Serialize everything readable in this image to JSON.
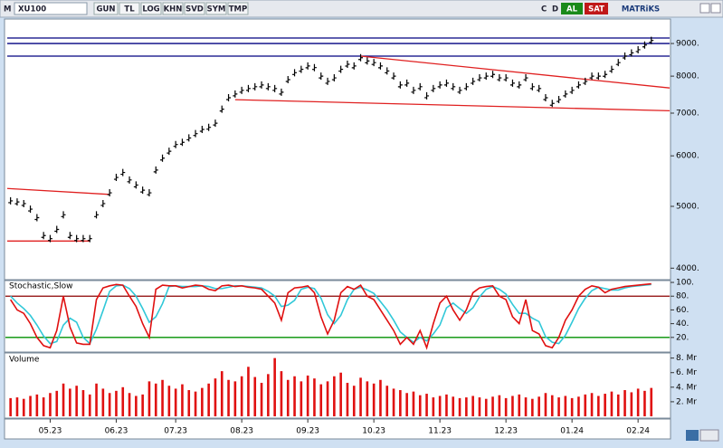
{
  "toolbar": {
    "menu": "M",
    "symbol": "XU100",
    "buttons": [
      "GUN",
      "TL",
      "LOG",
      "KHN",
      "SVD",
      "SYM",
      "TMP"
    ],
    "right": [
      "C",
      "D"
    ],
    "buy": "AL",
    "sell": "SAT",
    "brand": "MATRiKS"
  },
  "chart_data": [
    {
      "type": "price",
      "log_scale": true,
      "color": "#000000",
      "categories": [
        null,
        null,
        null,
        null,
        null,
        null,
        "05.23",
        null,
        null,
        null,
        null,
        null,
        null,
        null,
        null,
        null,
        "06.23",
        null,
        null,
        null,
        null,
        null,
        null,
        null,
        null,
        "07.23",
        null,
        null,
        null,
        null,
        null,
        null,
        null,
        null,
        null,
        "08.23",
        null,
        null,
        null,
        null,
        null,
        null,
        null,
        null,
        null,
        "09.23",
        null,
        null,
        null,
        null,
        null,
        null,
        null,
        null,
        null,
        "10.23",
        null,
        null,
        null,
        null,
        null,
        null,
        null,
        null,
        null,
        "11.23",
        null,
        null,
        null,
        null,
        null,
        null,
        null,
        null,
        null,
        "12.23",
        null,
        null,
        null,
        null,
        null,
        null,
        null,
        null,
        null,
        "01.24",
        null,
        null,
        null,
        null,
        null,
        null,
        null,
        null,
        null,
        "02.24",
        null,
        null
      ],
      "values": [
        5100,
        5080,
        5050,
        4950,
        4800,
        4500,
        4450,
        4600,
        4850,
        4500,
        4450,
        4450,
        4450,
        4850,
        5050,
        5250,
        5550,
        5650,
        5500,
        5400,
        5300,
        5250,
        5700,
        5950,
        6100,
        6250,
        6300,
        6400,
        6500,
        6600,
        6650,
        6750,
        7100,
        7400,
        7500,
        7600,
        7650,
        7700,
        7750,
        7700,
        7650,
        7550,
        7900,
        8100,
        8200,
        8300,
        8250,
        8000,
        7850,
        7950,
        8200,
        8350,
        8300,
        8550,
        8450,
        8400,
        8300,
        8150,
        8000,
        7750,
        7800,
        7600,
        7700,
        7450,
        7650,
        7750,
        7800,
        7700,
        7600,
        7700,
        7850,
        7950,
        8000,
        8050,
        7950,
        7950,
        7800,
        7750,
        7950,
        7700,
        7650,
        7400,
        7250,
        7350,
        7500,
        7600,
        7750,
        7850,
        8000,
        8000,
        8050,
        8200,
        8400,
        8600,
        8700,
        8800,
        8950,
        9100
      ],
      "ylim": [
        3850,
        9800
      ],
      "yticks": [
        {
          "value": 9000,
          "label": "9000."
        },
        {
          "value": 8000,
          "label": "8000."
        },
        {
          "value": 7000,
          "label": "7000."
        },
        {
          "value": 6000,
          "label": "6000."
        },
        {
          "value": 5000,
          "label": "5000."
        },
        {
          "value": 4000,
          "label": "4000."
        }
      ],
      "trendlines": [
        {
          "color": "#000080",
          "from": [
            -0.5,
            9180
          ],
          "to": [
            100,
            9180
          ]
        },
        {
          "color": "#000080",
          "from": [
            -0.5,
            9000
          ],
          "to": [
            100,
            9000
          ]
        },
        {
          "color": "#000080",
          "from": [
            -0.5,
            8600
          ],
          "to": [
            100,
            8600
          ]
        },
        {
          "color": "#e02020",
          "from": [
            -0.5,
            5333
          ],
          "to": [
            15,
            5220
          ]
        },
        {
          "color": "#e02020",
          "from": [
            -0.5,
            4412
          ],
          "to": [
            12,
            4412
          ]
        },
        {
          "color": "#e02020",
          "from": [
            34,
            7348
          ],
          "to": [
            100,
            7060
          ]
        },
        {
          "color": "#e02020",
          "from": [
            53,
            8600
          ],
          "to": [
            100,
            7666
          ]
        }
      ]
    },
    {
      "type": "line",
      "title": "Stochastic,Slow",
      "series": [
        {
          "color": "#e01010",
          "values": [
            75,
            60,
            55,
            40,
            20,
            8,
            5,
            30,
            80,
            35,
            12,
            10,
            10,
            75,
            92,
            95,
            97,
            96,
            80,
            65,
            40,
            20,
            90,
            96,
            95,
            95,
            92,
            94,
            96,
            95,
            90,
            88,
            95,
            96,
            94,
            95,
            93,
            92,
            90,
            80,
            70,
            45,
            85,
            92,
            93,
            95,
            85,
            50,
            25,
            45,
            85,
            94,
            90,
            96,
            80,
            75,
            60,
            45,
            30,
            10,
            20,
            10,
            30,
            5,
            40,
            70,
            80,
            60,
            45,
            60,
            85,
            92,
            94,
            95,
            80,
            75,
            50,
            40,
            75,
            30,
            25,
            8,
            5,
            20,
            45,
            60,
            80,
            90,
            95,
            93,
            85,
            90,
            92,
            94,
            95,
            96,
            97,
            98
          ]
        },
        {
          "color": "#30c8d8",
          "values": [
            80,
            70,
            62,
            52,
            38,
            22,
            11,
            14,
            38,
            48,
            42,
            20,
            11,
            32,
            59,
            87,
            95,
            96,
            91,
            80,
            62,
            42,
            50,
            69,
            94,
            95,
            94,
            94,
            94,
            95,
            94,
            91,
            91,
            93,
            95,
            95,
            94,
            93,
            92,
            87,
            80,
            65,
            67,
            74,
            90,
            93,
            91,
            77,
            53,
            40,
            52,
            75,
            90,
            93,
            89,
            84,
            72,
            60,
            45,
            28,
            20,
            13,
            20,
            15,
            25,
            38,
            63,
            70,
            62,
            55,
            63,
            79,
            90,
            94,
            90,
            83,
            68,
            55,
            55,
            48,
            43,
            21,
            13,
            11,
            23,
            42,
            62,
            77,
            88,
            93,
            91,
            89,
            89,
            92,
            94,
            95,
            96,
            97
          ]
        }
      ],
      "ylim": [
        0,
        104
      ],
      "yticks": [
        {
          "value": 100,
          "label": "100."
        },
        {
          "value": 80,
          "label": "80."
        },
        {
          "value": 60,
          "label": "60."
        },
        {
          "value": 40,
          "label": "40."
        },
        {
          "value": 20,
          "label": "20."
        }
      ],
      "hlines": [
        {
          "value": 80,
          "color": "#8b0000"
        },
        {
          "value": 20,
          "color": "#009000"
        }
      ]
    },
    {
      "type": "bar",
      "title": "Volume",
      "color": "#e01010",
      "values": [
        2.5,
        2.6,
        2.4,
        2.8,
        3.0,
        2.6,
        3.2,
        3.5,
        4.5,
        3.8,
        4.2,
        3.6,
        3.0,
        4.5,
        3.8,
        3.2,
        3.5,
        4.0,
        3.2,
        2.8,
        3.0,
        4.8,
        4.5,
        5.0,
        4.2,
        3.8,
        4.4,
        3.6,
        3.4,
        3.9,
        4.5,
        5.2,
        6.2,
        5.0,
        4.8,
        5.5,
        6.8,
        5.4,
        4.6,
        5.8,
        8.0,
        6.2,
        5.0,
        5.5,
        4.8,
        5.6,
        5.2,
        4.4,
        4.8,
        5.5,
        6.0,
        4.6,
        4.2,
        5.3,
        4.8,
        4.5,
        5.0,
        4.2,
        3.8,
        3.6,
        3.2,
        3.4,
        2.9,
        3.1,
        2.6,
        2.8,
        3.0,
        2.7,
        2.5,
        2.6,
        2.8,
        2.6,
        2.4,
        2.7,
        2.9,
        2.5,
        2.8,
        3.0,
        2.6,
        2.4,
        2.7,
        3.2,
        2.9,
        2.6,
        2.8,
        2.5,
        2.7,
        3.0,
        3.2,
        2.8,
        3.1,
        3.4,
        3.0,
        3.6,
        3.3,
        3.8,
        3.5,
        3.9
      ],
      "ylim": [
        0,
        8.7
      ],
      "yticks": [
        {
          "value": 8,
          "label": "8. Mr"
        },
        {
          "value": 6,
          "label": "6. Mr"
        },
        {
          "value": 4,
          "label": "4. Mr"
        },
        {
          "value": 2,
          "label": "2. Mr"
        }
      ]
    }
  ]
}
